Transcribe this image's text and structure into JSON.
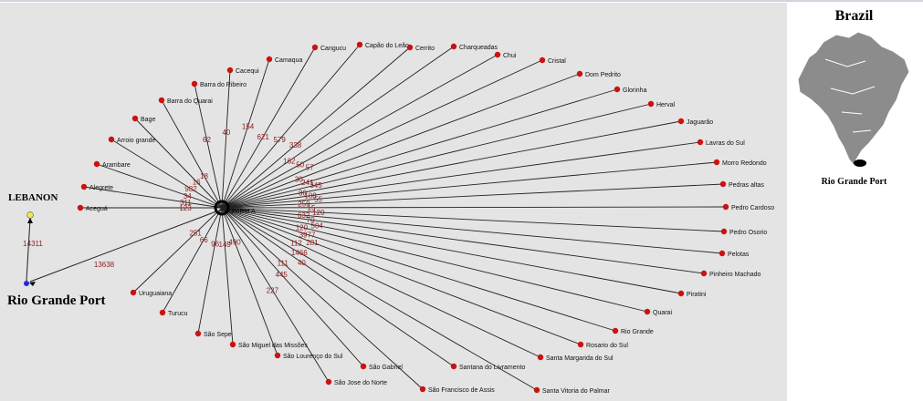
{
  "hub": {
    "label": "FARM A",
    "color": "#000000"
  },
  "port": {
    "label": "Rio Grande Port",
    "color": "#1f2fd6"
  },
  "destination": {
    "label": "LEBANON",
    "color": "#f2e84a"
  },
  "legs": {
    "hub_to_port": "13638",
    "port_to_destination": "14311"
  },
  "inset": {
    "title": "Brazil",
    "port_label": "Rio Grande Port",
    "map_color": "#8c8c8c"
  },
  "colors": {
    "background": "#e4e4e4",
    "node": "#cc1111",
    "edge": "#222222",
    "weight_text": "#8b1a1a"
  },
  "cities": [
    {
      "name": "Aceguá",
      "weight": "123"
    },
    {
      "name": "Alegrete",
      "weight": "311"
    },
    {
      "name": "Arambare",
      "weight": "34"
    },
    {
      "name": "Arroio grande",
      "weight": "982"
    },
    {
      "name": "Bage",
      "weight": "16"
    },
    {
      "name": "Barra do Quarai",
      "weight": "18"
    },
    {
      "name": "Barra do Ribeiro",
      "weight": "62"
    },
    {
      "name": "Cacequi",
      "weight": "40"
    },
    {
      "name": "Camaqua",
      "weight": "154"
    },
    {
      "name": "Cangucu",
      "weight": "621"
    },
    {
      "name": "Capão do Leão",
      "weight": "579"
    },
    {
      "name": "Cerrito",
      "weight": "338"
    },
    {
      "name": "Charqueadas",
      "weight": "162"
    },
    {
      "name": "Chui",
      "weight": "50"
    },
    {
      "name": "Cristal",
      "weight": "57"
    },
    {
      "name": "Dom Pedrito",
      "weight": "30"
    },
    {
      "name": "Glorinha",
      "weight": "241"
    },
    {
      "name": "Herval",
      "weight": "345"
    },
    {
      "name": "Jaguarão",
      "weight": "86"
    },
    {
      "name": "Lavras do Sul",
      "weight": "108"
    },
    {
      "name": "Morro Redondo",
      "weight": "55"
    },
    {
      "name": "Pedras altas",
      "weight": "259"
    },
    {
      "name": "Pedro Cardoso",
      "weight": "15"
    },
    {
      "name": "Pedro Osorio",
      "weight": "120"
    },
    {
      "name": "Pelotas",
      "weight": "632"
    },
    {
      "name": "Pinheiro Machado",
      "weight": "70"
    },
    {
      "name": "Piratini",
      "weight": "504"
    },
    {
      "name": "Quarai",
      "weight": "120"
    },
    {
      "name": "Rio Grande",
      "weight": "3977"
    },
    {
      "name": "Rosario do Sul",
      "weight": "281"
    },
    {
      "name": "Santa Margarida do Sul",
      "weight": "112"
    },
    {
      "name": "Santa Vitoria do Palmar",
      "weight": "1466"
    },
    {
      "name": "Santana do Livramento",
      "weight": "40"
    },
    {
      "name": "São Francisco de Assis",
      "weight": "111"
    },
    {
      "name": "São Gabriel",
      "weight": "445"
    },
    {
      "name": "São Jose do Norte",
      "weight": "227"
    },
    {
      "name": "São Lourenço do Sul",
      "weight": "490"
    },
    {
      "name": "São Miguel das Missões",
      "weight": "149"
    },
    {
      "name": "São Sepe",
      "weight": "96"
    },
    {
      "name": "Turucu",
      "weight": "66"
    },
    {
      "name": "Uruguaiana",
      "weight": "251"
    }
  ]
}
